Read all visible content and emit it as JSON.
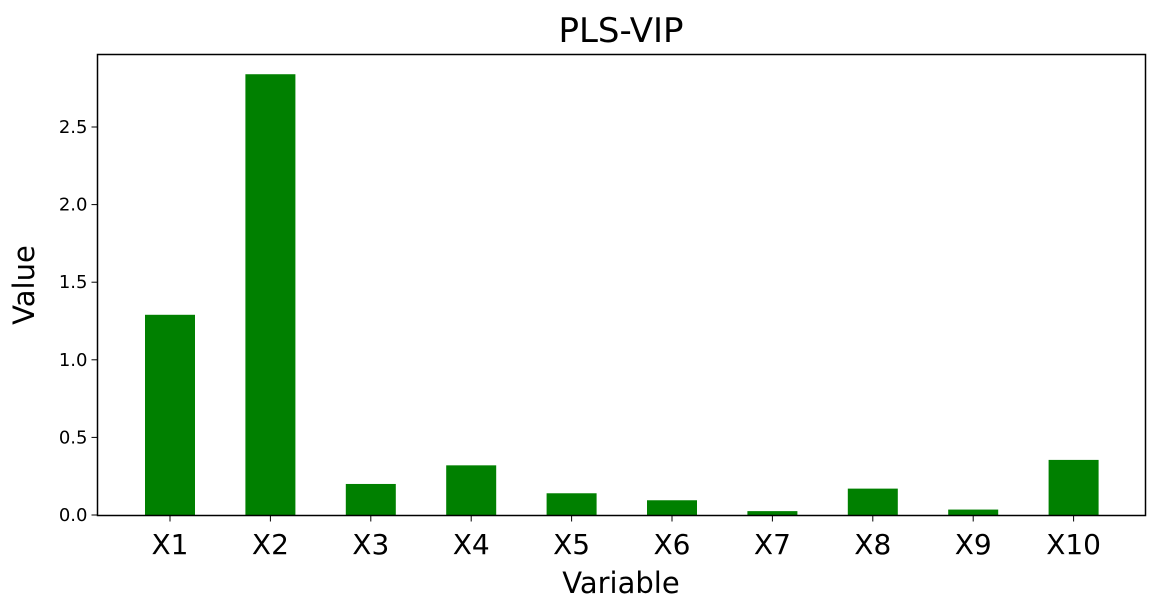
{
  "chart_data": {
    "type": "bar",
    "title": "PLS-VIP",
    "xlabel": "Variable",
    "ylabel": "Value",
    "categories": [
      "X1",
      "X2",
      "X3",
      "X4",
      "X5",
      "X6",
      "X7",
      "X8",
      "X9",
      "X10"
    ],
    "values": [
      1.29,
      2.84,
      0.2,
      0.32,
      0.14,
      0.095,
      0.025,
      0.17,
      0.035,
      0.355
    ],
    "ylim": [
      0,
      2.93
    ],
    "yticks": [
      0.0,
      0.5,
      1.0,
      1.5,
      2.0,
      2.5
    ],
    "ytick_labels": [
      "0.0",
      "0.5",
      "1.0",
      "1.5",
      "2.0",
      "2.5"
    ],
    "grid": false,
    "legend": "none",
    "bar_color": "#008000"
  }
}
